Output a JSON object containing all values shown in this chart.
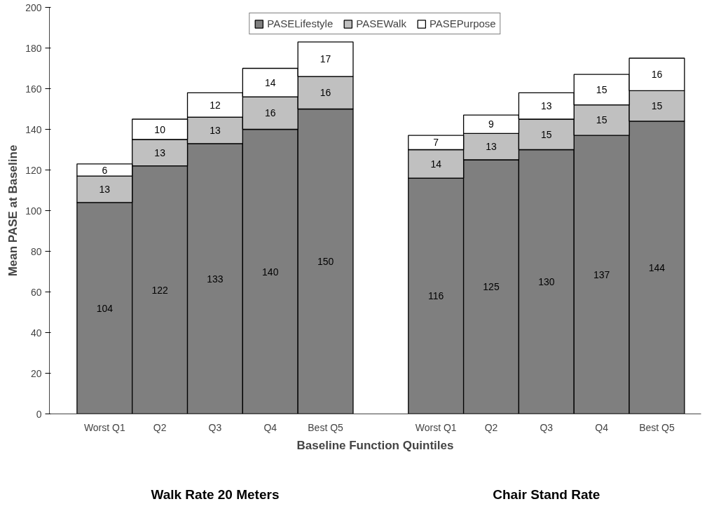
{
  "chart_data": {
    "type": "bar",
    "stacked": true,
    "xlabel": "Baseline Function Quintiles",
    "ylabel": "Mean PASE at Baseline",
    "categories": [
      "Worst Q1",
      "Q2",
      "Q3",
      "Q4",
      "Best Q5",
      null,
      "Worst Q1",
      "Q2",
      "Q3",
      "Q4",
      "Best Q5"
    ],
    "series": [
      {
        "name": "PASELifestyle",
        "color": "#7f7f7f",
        "values": [
          104,
          122,
          133,
          140,
          150,
          null,
          116,
          125,
          130,
          137,
          144
        ]
      },
      {
        "name": "PASEWalk",
        "color": "#c0c0c0",
        "values": [
          13,
          13,
          13,
          16,
          16,
          null,
          14,
          13,
          15,
          15,
          15
        ]
      },
      {
        "name": "PASEPurpose",
        "color": "#ffffff",
        "values": [
          6,
          10,
          12,
          14,
          17,
          null,
          7,
          9,
          13,
          15,
          16
        ]
      }
    ],
    "data_labels": true,
    "ylim": [
      0,
      200
    ],
    "yticks": [
      0,
      20,
      40,
      60,
      80,
      100,
      120,
      140,
      160,
      180,
      200
    ],
    "grid": false,
    "legend": "top",
    "annotations": [
      "Walk Rate 20 Meters",
      "Chair Stand Rate"
    ]
  }
}
